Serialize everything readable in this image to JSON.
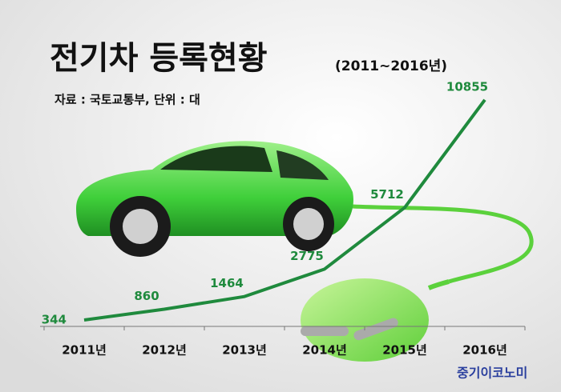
{
  "chart_data": {
    "type": "line",
    "title": "전기차 등록현황",
    "subtitle": "(2011~2016년)",
    "source": "자료 : 국토교통부, 단위 : 대",
    "brand": "중기이코노미",
    "categories": [
      "2011년",
      "2012년",
      "2013년",
      "2014년",
      "2015년",
      "2016년"
    ],
    "values": [
      344,
      860,
      1464,
      2775,
      5712,
      10855
    ],
    "color": "#1f8a3d",
    "ylim": [
      0,
      11000
    ]
  }
}
